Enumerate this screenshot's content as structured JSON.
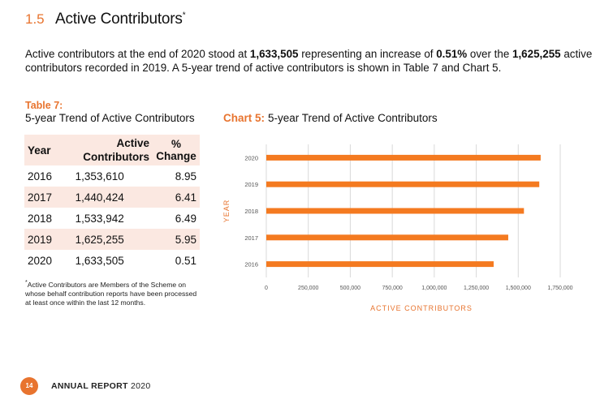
{
  "section": {
    "number": "1.5",
    "title": "Active Contributors",
    "title_mark": "*"
  },
  "intro": {
    "part1": "Active contributors at the end of 2020 stood at ",
    "value_2020": "1,633,505",
    "part2": " representing an increase of ",
    "pct": "0.51%",
    "part3": " over the ",
    "value_2019": "1,625,255",
    "part4": " active contributors recorded in 2019.  A 5-year trend of active contributors is shown in Table 7 and Chart 5."
  },
  "table": {
    "label": "Table 7:",
    "title": "5-year Trend of Active Contributors",
    "headers": {
      "year": "Year",
      "active_line1": "Active",
      "active_line2": "Contributors",
      "pct": "% Change"
    },
    "rows": [
      {
        "year": "2016",
        "active": "1,353,610",
        "pct": "8.95"
      },
      {
        "year": "2017",
        "active": "1,440,424",
        "pct": "6.41"
      },
      {
        "year": "2018",
        "active": "1,533,942",
        "pct": "6.49"
      },
      {
        "year": "2019",
        "active": "1,625,255",
        "pct": "5.95"
      },
      {
        "year": "2020",
        "active": "1,633,505",
        "pct": "0.51"
      }
    ]
  },
  "footnote": {
    "mark": "*",
    "text": "Active Contributors are Members of the Scheme on whose behalf contribution reports have been processed at least once within the last 12 months."
  },
  "chart_label": "Chart 5:",
  "chart_data": {
    "type": "bar",
    "orientation": "horizontal",
    "title": "5-year Trend of Active Contributors",
    "xlabel": "ACTIVE CONTRIBUTORS",
    "ylabel": "YEAR",
    "categories": [
      "2016",
      "2017",
      "2018",
      "2019",
      "2020"
    ],
    "values": [
      1353610,
      1440424,
      1533942,
      1625255,
      1633505
    ],
    "xlim": [
      0,
      1750000
    ],
    "xticks": [
      0,
      250000,
      500000,
      750000,
      1000000,
      1250000,
      1500000,
      1750000
    ],
    "xtick_labels": [
      "0",
      "250,000",
      "500,000",
      "750,000",
      "1,000,000",
      "1,250,000",
      "1,500,000",
      "1,750,000"
    ],
    "grid": "vertical",
    "bar_color": "#f47a20"
  },
  "footer": {
    "page": "14",
    "label_bold": "ANNUAL REPORT",
    "label_year": "2020"
  }
}
